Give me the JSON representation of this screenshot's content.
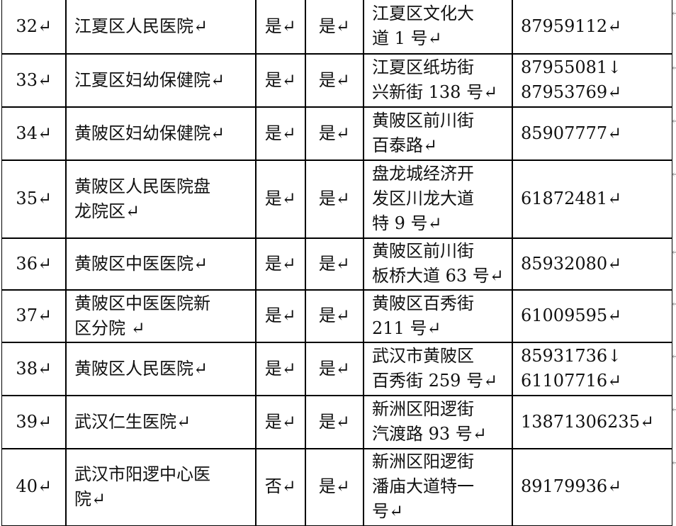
{
  "table": {
    "rows": [
      {
        "cells": [
          [
            "32↵"
          ],
          [
            "江夏区人民医院↵"
          ],
          [
            "是↵"
          ],
          [
            "是↵"
          ],
          [
            "江夏区文化大",
            "道 1 号↵"
          ],
          [
            "87959112↵"
          ]
        ],
        "end": "↵"
      },
      {
        "cells": [
          [
            "33↵"
          ],
          [
            "江夏区妇幼保健院↵"
          ],
          [
            "是↵"
          ],
          [
            "是↵"
          ],
          [
            "江夏区纸坊街",
            "兴新街 138 号↵"
          ],
          [
            "87955081↓",
            "87953769↵"
          ]
        ],
        "end": "↵"
      },
      {
        "cells": [
          [
            "34↵"
          ],
          [
            "黄陂区妇幼保健院↵"
          ],
          [
            "是↵"
          ],
          [
            "是↵"
          ],
          [
            "黄陂区前川街",
            "百泰路↵"
          ],
          [
            "85907777↵"
          ]
        ],
        "end": "↵"
      },
      {
        "cells": [
          [
            "35↵"
          ],
          [
            "黄陂区人民医院盘",
            "龙院区↵"
          ],
          [
            "是↵"
          ],
          [
            "是↵"
          ],
          [
            "盘龙城经济开",
            "发区川龙大道",
            "特 9 号↵"
          ],
          [
            "61872481↵"
          ]
        ],
        "end": "↵"
      },
      {
        "cells": [
          [
            "36↵"
          ],
          [
            "黄陂区中医医院↵"
          ],
          [
            "是↵"
          ],
          [
            "是↵"
          ],
          [
            "黄陂区前川街",
            "板桥大道 63 号↵"
          ],
          [
            "85932080↵"
          ]
        ],
        "end": "↵"
      },
      {
        "cells": [
          [
            "37↵"
          ],
          [
            "黄陂区中医医院新",
            "区分院 ↵"
          ],
          [
            "是↵"
          ],
          [
            "是↵"
          ],
          [
            "黄陂区百秀街",
            "211 号↵"
          ],
          [
            "61009595↵"
          ]
        ],
        "end": "↵"
      },
      {
        "cells": [
          [
            "38↵"
          ],
          [
            "黄陂区人民医院↵"
          ],
          [
            "是↵"
          ],
          [
            "是↵"
          ],
          [
            "武汉市黄陂区",
            "百秀街 259 号↵"
          ],
          [
            "85931736↓",
            "61107716↵"
          ]
        ],
        "end": "↵"
      },
      {
        "cells": [
          [
            "39↵"
          ],
          [
            "武汉仁生医院↵"
          ],
          [
            "是↵"
          ],
          [
            "是↵"
          ],
          [
            "新洲区阳逻街",
            "汽渡路 93 号↵"
          ],
          [
            "13871306235↵"
          ]
        ],
        "end": "↵"
      },
      {
        "cells": [
          [
            "40↵"
          ],
          [
            "武汉市阳逻中心医",
            "院↵"
          ],
          [
            "否↵"
          ],
          [
            "是↵"
          ],
          [
            "新洲区阳逻街",
            "潘庙大道特一",
            "号↵"
          ],
          [
            "89179936↵"
          ]
        ],
        "end": "↵"
      }
    ]
  }
}
